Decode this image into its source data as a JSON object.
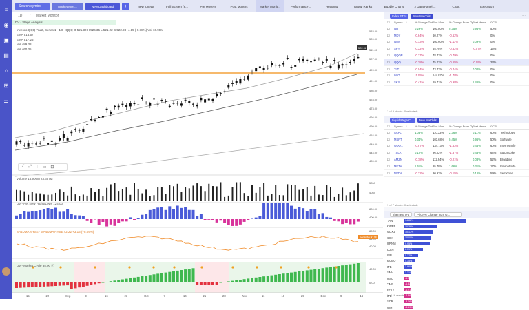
{
  "topbar": {
    "search_label": "Search symbol",
    "tabs": [
      "Market Mon...",
      "New Dashboard",
      "new tunetst",
      "Full Screen (8...",
      "Pre Movers",
      "Post Movers",
      "Market Monit...",
      "Performance ...",
      "Heatmap",
      "Group Ranks",
      "Bubble Charts",
      "2 Data Panel ...",
      "Chart",
      "Execution"
    ],
    "active_tab": "Market Monit...",
    "add": "+"
  },
  "leftbar": {
    "icons": [
      "≡",
      "◉",
      "▣",
      "▤",
      "⌂",
      "⊞",
      "☰"
    ]
  },
  "chart": {
    "toolbar": [
      "1D",
      "⛶",
      "Market Monitor"
    ],
    "stage_label": "DV - Stage Analysis",
    "legend": [
      "Invesco QQQ Trust, Series 1 · 1D · QQQ  O 521.32  H 526.35  L 521.22  C 522.98  -4.15 (-0.78%)  Vol 16.90M",
      "EMA  515.57",
      "EMA  517.26",
      "MA  489.38",
      "MA  460.35"
    ],
    "price_axis": [
      "533.00",
      "520.00",
      "511.00",
      "507.00",
      "499.00",
      "491.00",
      "486.00",
      "478.00",
      "473.00",
      "466.00",
      "460.00",
      "454.00",
      "449.00",
      "444.00",
      "439.00"
    ],
    "last_price": "522.98",
    "volume_label": "Volume  16.906M  23.657M",
    "vol_axis": [
      "50M",
      "40M"
    ],
    "nhnl_label": "DV - Net New Highs/Lows  124.00",
    "nhnl_axis": [
      "800.00",
      "400.00"
    ],
    "a4_label": "SA4DMA NYSE · SA4DMA NYSE  42.22  +3.16 (+8.09%)",
    "a4_axis": [
      "88.00",
      "64.00",
      "40.00"
    ],
    "a4_badge": "SA4DMA NYSE",
    "cycle_label": "DV - Market Cycle  35.00  ⓘ",
    "cycle_axis": [
      "40.00",
      "0.00"
    ],
    "x_axis": [
      "15",
      "22",
      "Sep",
      "9",
      "16",
      "23",
      "Oct",
      "7",
      "14",
      "21",
      "28",
      "Nov",
      "11",
      "18",
      "25",
      "Dec",
      "9",
      "16"
    ]
  },
  "watchlist1": {
    "name": "Index ETFs",
    "new": "New Watchlist",
    "cols": [
      "Symbo... ↑",
      "% Change Today",
      "Run Mon...",
      "% Change From Open",
      "Post Marke...",
      "GCR"
    ],
    "rows": [
      [
        "IJR",
        "0.29%",
        "160.80%",
        "0.35%",
        "0.95%",
        "50%"
      ],
      [
        "MDY",
        "-0.64%",
        "60.27%",
        "-0.62%",
        "",
        "0%"
      ],
      [
        "IWM",
        "-0.13%",
        "160.60%",
        "-1.11%",
        "0.09%",
        "0%"
      ],
      [
        "SPY",
        "-0.32%",
        "65.78%",
        "-0.52%",
        "-0.07%",
        "15%"
      ],
      [
        "QQQP",
        "-0.77%",
        "78.42%",
        "-0.79%",
        "",
        "0%"
      ],
      [
        "QQQ",
        "-0.78%",
        "75.02%",
        "-0.65%",
        "-0.09%",
        "23%"
      ],
      [
        "TLT",
        "-0.04%",
        "73.47%",
        "-0.44%",
        "0.02%",
        "0%"
      ],
      [
        "IWO",
        "-1.05%",
        "144.87%",
        "-1.78%",
        "",
        "0%"
      ],
      [
        "SKY",
        "-0.41%",
        "69.71%",
        "-0.98%",
        "1.46%",
        "0%"
      ]
    ],
    "footer": "1 of 9 stocks (0 selected)"
  },
  "watchlist2": {
    "name": "Liquid Mega C...",
    "new": "New Watchlist",
    "cols": [
      "Symbo... ↑",
      "% Change Today",
      "Run Mon...",
      "% Change From Open",
      "Post Marke...",
      "GCR"
    ],
    "rows": [
      [
        "AAPL",
        "1.03%",
        "110.33%",
        "2.36%",
        "0.11%",
        "60%",
        "Technology"
      ],
      [
        "MSFT",
        "0.34%",
        "103.68%",
        "0.45%",
        "0.96%",
        "50%",
        "Software"
      ],
      [
        "GOO...",
        "-0.97%",
        "134.73%",
        "-1.53%",
        "0.46%",
        "60%",
        "Internet Info"
      ],
      [
        "TSLA",
        "0.12%",
        "96.02%",
        "-1.37%",
        "0.43%",
        "64%",
        "Automobile"
      ],
      [
        "AMZN",
        "-0.78%",
        "112.94%",
        "-0.21%",
        "0.08%",
        "52%",
        "Broadline"
      ],
      [
        "META",
        "1.61%",
        "95.78%",
        "1.66%",
        "0.31%",
        "17%",
        "Internet Info"
      ],
      [
        "NVDA",
        "-0.22%",
        "90.92%",
        "-0.15%",
        "0.16%",
        "59%",
        "Semicond"
      ]
    ],
    "footer": "1 of 7 stocks (0 selected)"
  },
  "watchlist3": {
    "name": "Theme ETFs",
    "sort": "Price % Change from O...",
    "rows": [
      [
        "TAN",
        "14.88%",
        1.0
      ],
      [
        "KWEB",
        "10.38%",
        0.52
      ],
      [
        "GDXJ",
        "10.17%",
        0.47
      ],
      [
        "GDX",
        "10.00%",
        0.43
      ],
      [
        "URNM",
        "9.95%",
        0.41
      ],
      [
        "ICLN",
        "6.09%",
        0.3
      ],
      [
        "IBB",
        "5.27%",
        0.22
      ],
      [
        "ROBO",
        "4.35%",
        0.18
      ],
      [
        "ITB",
        "3.86%",
        0.12
      ],
      [
        "SMH",
        "3.31%",
        0.1
      ],
      [
        "USO",
        "-1.20%",
        0.08
      ],
      [
        "XME",
        "-1.52%",
        0.09
      ],
      [
        "FFTY",
        "-1.71%",
        0.1
      ],
      [
        "ITB",
        "-2.36%",
        0.11
      ],
      [
        "SCR",
        "-3.06%",
        0.12
      ],
      [
        "OIH",
        "-4.19%",
        0.14
      ]
    ],
    "footer": "1 of 16 results"
  }
}
